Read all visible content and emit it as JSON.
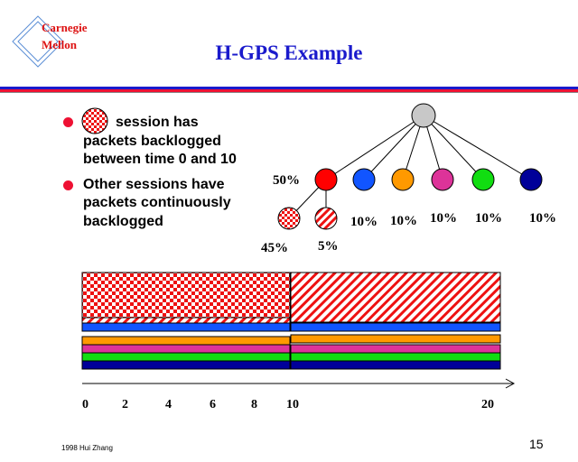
{
  "logo": {
    "line1": "Carnegie",
    "line2": "Mellon"
  },
  "title": "H-GPS Example",
  "bullets": [
    {
      "lines": [
        "session has",
        "packets backlogged",
        "between time 0 and 10"
      ]
    },
    {
      "lines": [
        "Other sessions have",
        "packets continuously",
        "backlogged"
      ]
    }
  ],
  "tree": {
    "root_color": "#c8c8c8",
    "children": [
      {
        "share": "50%",
        "color": "#ff0000"
      },
      {
        "share": "10%",
        "color": "#1155ff"
      },
      {
        "share": "10%",
        "color": "#ff9900"
      },
      {
        "share": "10%",
        "color": "#dd3399"
      },
      {
        "share": "10%",
        "color": "#11dd11"
      },
      {
        "share": "10%",
        "color": "#000099"
      }
    ],
    "grandchildren": [
      {
        "share": "45%",
        "pattern": "checkered-red"
      },
      {
        "share": "5%",
        "pattern": "striped-red"
      }
    ]
  },
  "timeline": {
    "ticks": [
      "0",
      "2",
      "4",
      "6",
      "8",
      "10",
      "20"
    ]
  },
  "footer": {
    "left": "1998 Hui Zhang",
    "page": "15"
  }
}
